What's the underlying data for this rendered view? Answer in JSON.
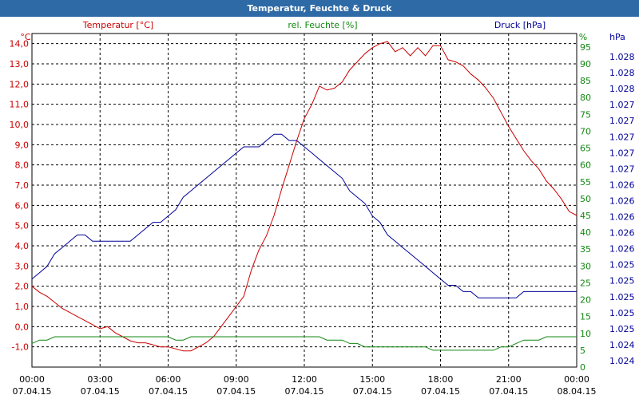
{
  "window": {
    "title": "Temperatur, Feuchte & Druck"
  },
  "colors": {
    "temperature": "#cc0000",
    "humidity": "#118811",
    "pressure": "#000099",
    "titlebar": "#2e6aa6"
  },
  "chart_data": {
    "type": "line",
    "title": "Temperatur, Feuchte & Druck",
    "x": [
      "00:00",
      "00:20",
      "00:40",
      "01:00",
      "01:20",
      "01:40",
      "02:00",
      "02:20",
      "02:40",
      "03:00",
      "03:20",
      "03:40",
      "04:00",
      "04:20",
      "04:40",
      "05:00",
      "05:20",
      "05:40",
      "06:00",
      "06:20",
      "06:40",
      "07:00",
      "07:20",
      "07:40",
      "08:00",
      "08:20",
      "08:40",
      "09:00",
      "09:20",
      "09:40",
      "10:00",
      "10:20",
      "10:40",
      "11:00",
      "11:20",
      "11:40",
      "12:00",
      "12:20",
      "12:40",
      "13:00",
      "13:20",
      "13:40",
      "14:00",
      "14:20",
      "14:40",
      "15:00",
      "15:20",
      "15:40",
      "16:00",
      "16:20",
      "16:40",
      "17:00",
      "17:20",
      "17:40",
      "18:00",
      "18:20",
      "18:40",
      "19:00",
      "19:20",
      "19:40",
      "20:00",
      "20:20",
      "20:40",
      "21:00",
      "21:20",
      "21:40",
      "22:00",
      "22:20",
      "22:40",
      "23:00",
      "23:20",
      "23:40",
      "00:00"
    ],
    "x_ticks": [
      {
        "time": "00:00",
        "date": "07.04.15"
      },
      {
        "time": "03:00",
        "date": "07.04.15"
      },
      {
        "time": "06:00",
        "date": "07.04.15"
      },
      {
        "time": "09:00",
        "date": "07.04.15"
      },
      {
        "time": "12:00",
        "date": "07.04.15"
      },
      {
        "time": "15:00",
        "date": "07.04.15"
      },
      {
        "time": "18:00",
        "date": "07.04.15"
      },
      {
        "time": "21:00",
        "date": "07.04.15"
      },
      {
        "time": "00:00",
        "date": "08.04.15"
      }
    ],
    "axes": {
      "temperature": {
        "label": "Temperatur [°C]",
        "unit": "°C",
        "ylim": [
          -2,
          14.5
        ],
        "ticks": [
          "-1,0",
          "0,0",
          "1,0",
          "2,0",
          "3,0",
          "4,0",
          "5,0",
          "6,0",
          "7,0",
          "8,0",
          "9,0",
          "10,0",
          "11,0",
          "12,0",
          "13,0",
          "14,0"
        ]
      },
      "humidity": {
        "label": "rel. Feuchte [%]",
        "unit": "%",
        "ylim": [
          0,
          99
        ],
        "ticks": [
          "0",
          "5",
          "10",
          "15",
          "20",
          "25",
          "30",
          "35",
          "40",
          "45",
          "50",
          "55",
          "60",
          "65",
          "70",
          "75",
          "80",
          "85",
          "90",
          "95"
        ]
      },
      "pressure": {
        "label": "Druck [hPa]",
        "unit": "hPa",
        "ylim": [
          1.0236,
          1.0289
        ],
        "ticks": [
          "1.024",
          "1.024",
          "1.025",
          "1.025",
          "1.025",
          "1.025",
          "1.025",
          "1.026",
          "1.026",
          "1.026",
          "1.026",
          "1.026",
          "1.027",
          "1.027",
          "1.027",
          "1.027",
          "1.027",
          "1.028",
          "1.028",
          "1.028"
        ]
      }
    },
    "series": [
      {
        "name": "Temperatur [°C]",
        "axis": "temperature",
        "values": [
          2.0,
          1.7,
          1.5,
          1.2,
          0.9,
          0.7,
          0.5,
          0.3,
          0.1,
          -0.1,
          0.0,
          -0.3,
          -0.5,
          -0.7,
          -0.8,
          -0.8,
          -0.9,
          -1.0,
          -1.0,
          -1.1,
          -1.2,
          -1.2,
          -1.0,
          -0.8,
          -0.5,
          0.0,
          0.5,
          1.0,
          1.5,
          2.8,
          3.8,
          4.5,
          5.5,
          6.8,
          8.0,
          9.2,
          10.3,
          11.0,
          11.9,
          11.7,
          11.8,
          12.1,
          12.7,
          13.1,
          13.5,
          13.8,
          14.0,
          14.1,
          13.6,
          13.8,
          13.4,
          13.8,
          13.4,
          13.9,
          13.9,
          13.2,
          13.1,
          12.9,
          12.5,
          12.2,
          11.8,
          11.3,
          10.6,
          9.9,
          9.3,
          8.7,
          8.2,
          7.8,
          7.2,
          6.8,
          6.3,
          5.7,
          5.5
        ]
      },
      {
        "name": "rel. Feuchte [%]",
        "axis": "humidity",
        "values": [
          7,
          8,
          8,
          9,
          9,
          9,
          9,
          9,
          9,
          9,
          9,
          9,
          9,
          9,
          9,
          9,
          9,
          9,
          9,
          8,
          8,
          9,
          9,
          9,
          9,
          9,
          9,
          9,
          9,
          9,
          9,
          9,
          9,
          9,
          9,
          9,
          9,
          9,
          9,
          8,
          8,
          8,
          7,
          7,
          6,
          6,
          6,
          6,
          6,
          6,
          6,
          6,
          6,
          5,
          5,
          5,
          5,
          5,
          5,
          5,
          5,
          5,
          6,
          6,
          7,
          8,
          8,
          8,
          9,
          9,
          9,
          9,
          9
        ]
      },
      {
        "name": "Druck [hPa]",
        "axis": "pressure",
        "values": [
          1.025,
          1.0251,
          1.0252,
          1.0254,
          1.0255,
          1.0256,
          1.0257,
          1.0257,
          1.0256,
          1.0256,
          1.0256,
          1.0256,
          1.0256,
          1.0256,
          1.0257,
          1.0258,
          1.0259,
          1.0259,
          1.026,
          1.0261,
          1.0263,
          1.0264,
          1.0265,
          1.0266,
          1.0267,
          1.0268,
          1.0269,
          1.027,
          1.0271,
          1.0271,
          1.0271,
          1.0272,
          1.0273,
          1.0273,
          1.0272,
          1.0272,
          1.0271,
          1.027,
          1.0269,
          1.0268,
          1.0267,
          1.0266,
          1.0264,
          1.0263,
          1.0262,
          1.026,
          1.0259,
          1.0257,
          1.0256,
          1.0255,
          1.0254,
          1.0253,
          1.0252,
          1.0251,
          1.025,
          1.0249,
          1.0249,
          1.0248,
          1.0248,
          1.0247,
          1.0247,
          1.0247,
          1.0247,
          1.0247,
          1.0247,
          1.0248,
          1.0248,
          1.0248,
          1.0248,
          1.0248,
          1.0248,
          1.0248,
          1.0248
        ]
      }
    ]
  }
}
